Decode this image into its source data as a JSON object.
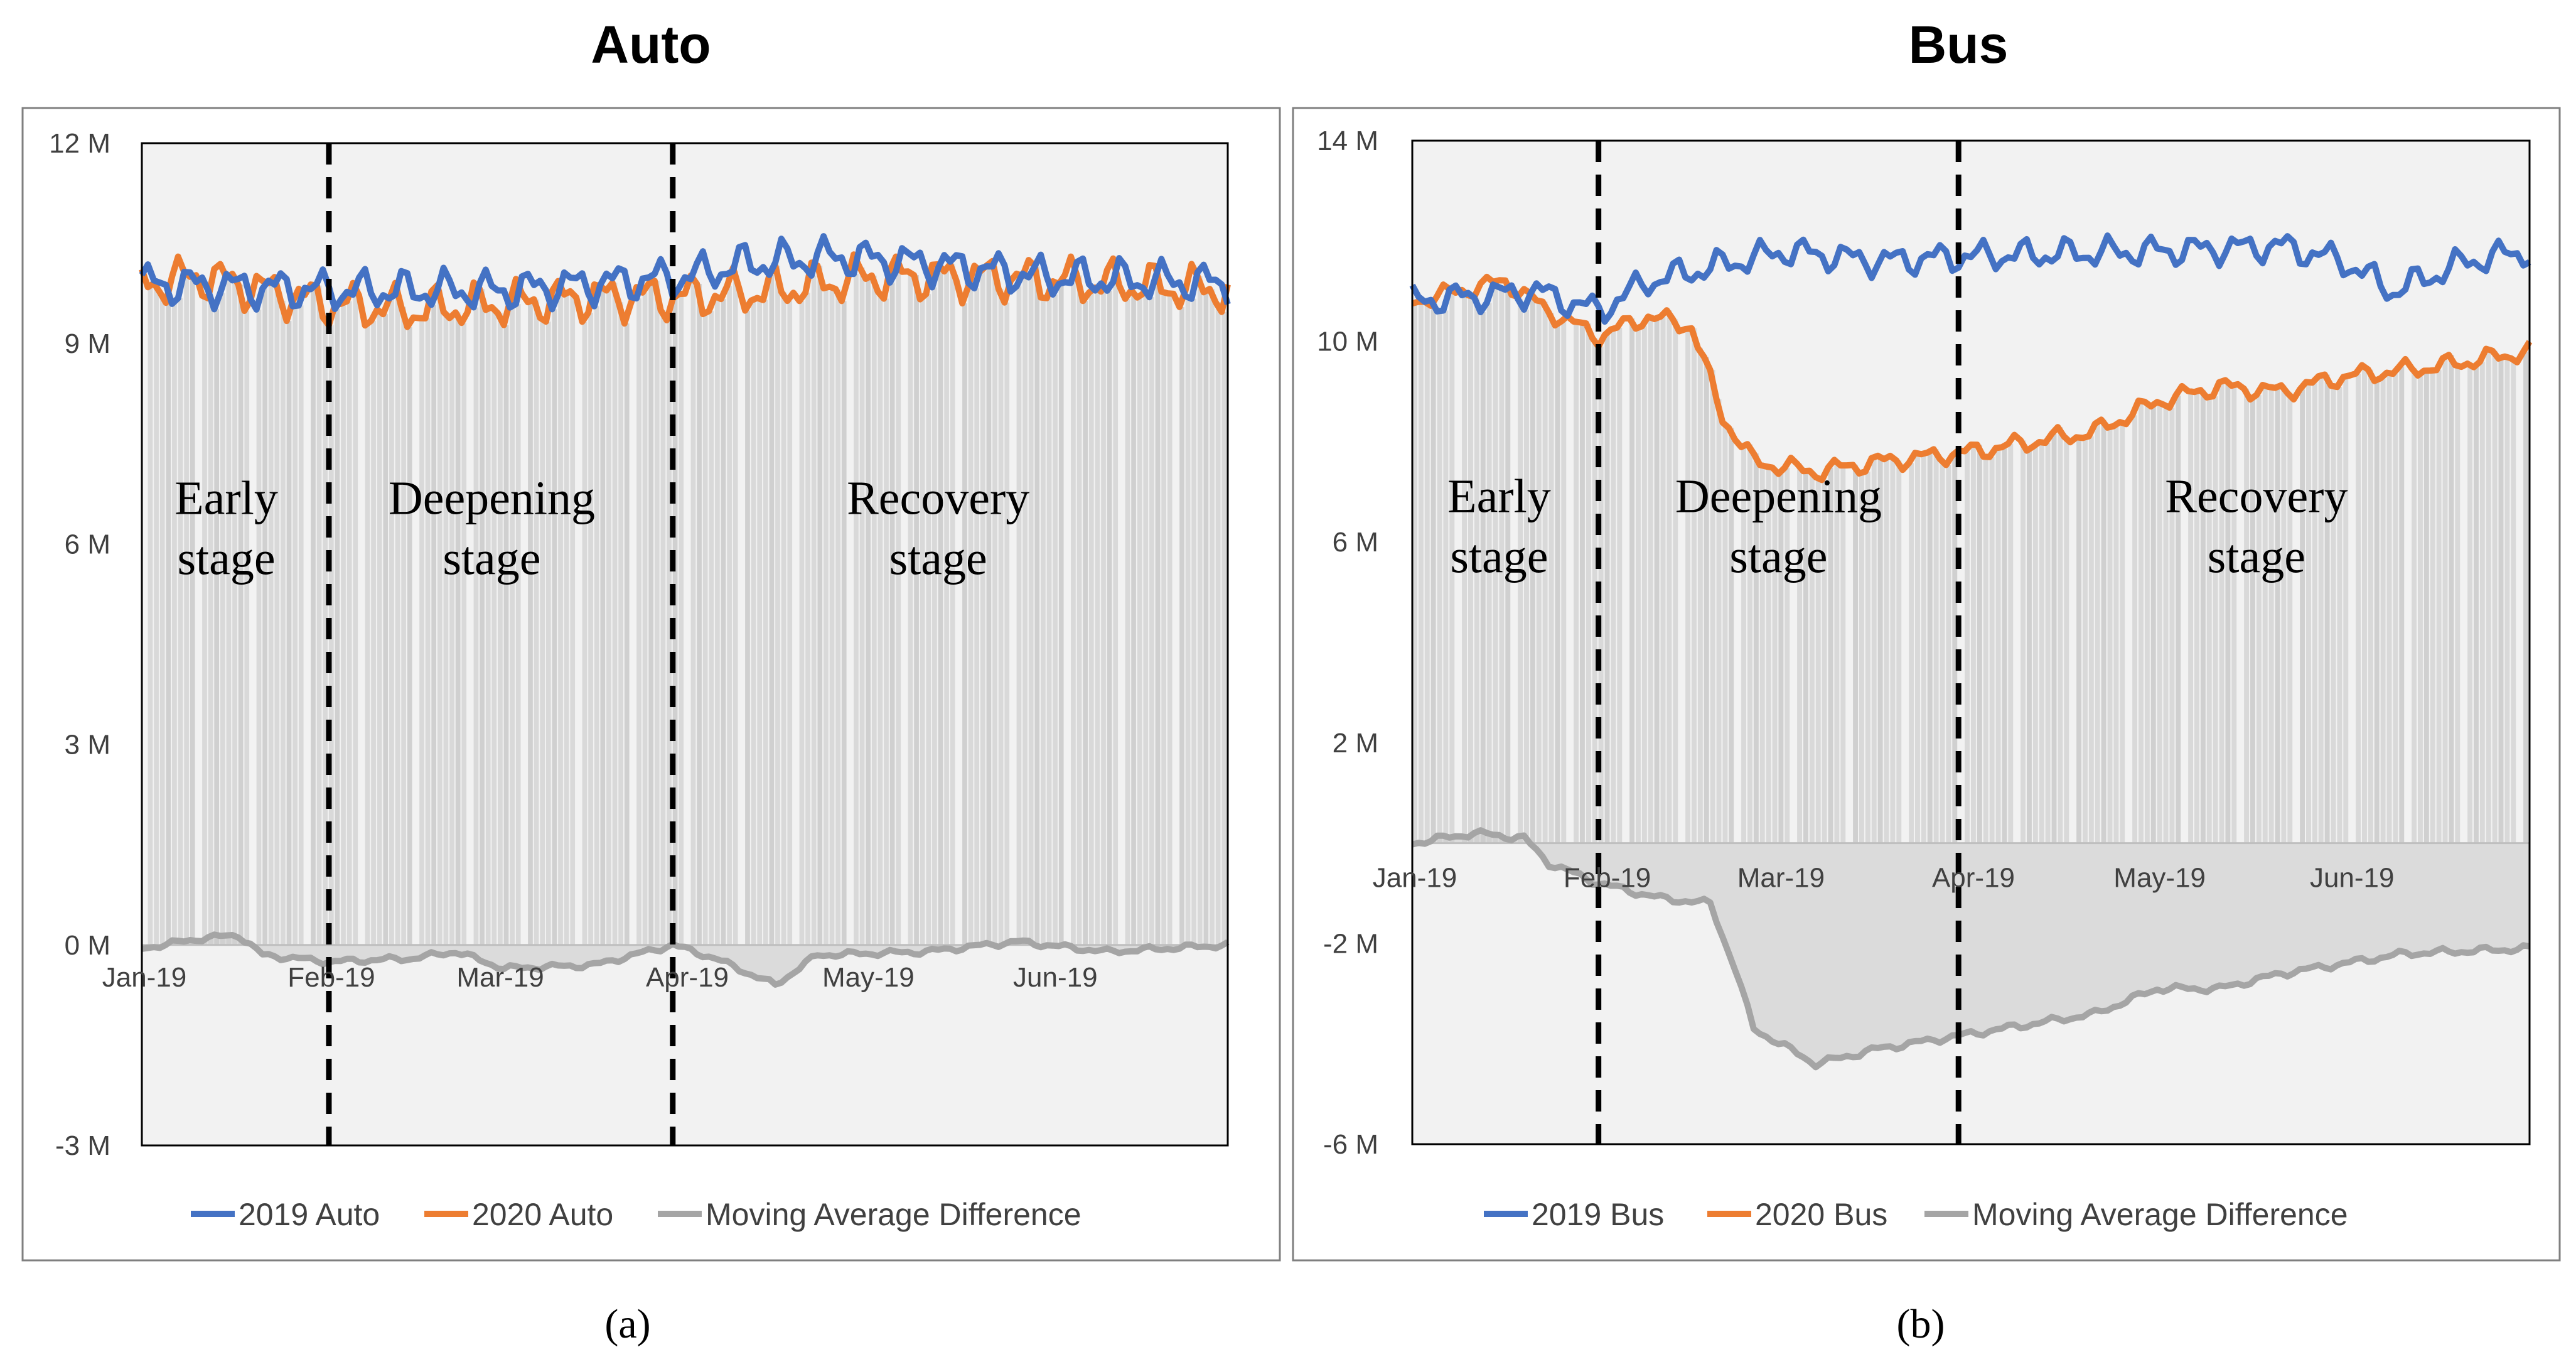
{
  "chart_data": [
    {
      "id": "a",
      "type": "line",
      "title": "Auto",
      "caption": "(a)",
      "y_tick_labels": [
        "12 M",
        "9 M",
        "6 M",
        "3 M",
        "0 M",
        "-3 M"
      ],
      "y_tick_values": [
        12,
        9,
        6,
        3,
        0,
        -3
      ],
      "ylim": [
        -3,
        12
      ],
      "x_tick_labels": [
        "Jan-19",
        "Feb-19",
        "Mar-19",
        "Apr-19",
        "May-19",
        "Jun-19"
      ],
      "x_tick_days": [
        0,
        31,
        59,
        90,
        120,
        151
      ],
      "x_days": 180,
      "stage_dividers_days": [
        31,
        88
      ],
      "stages": [
        {
          "line1": "Early",
          "line2": "stage",
          "center_day": 14
        },
        {
          "line1": "Deepening",
          "line2": "stage",
          "center_day": 58
        },
        {
          "line1": "Recovery",
          "line2": "stage",
          "center_day": 132
        }
      ],
      "legend": [
        "2019 Auto",
        "2020 Auto",
        "Moving Average Difference"
      ],
      "colors": {
        "y2019": "#4472C4",
        "y2020": "#ED7D31",
        "diff": "#A5A5A5"
      },
      "series_2019": {
        "base": 10.0,
        "points": [
          [
            0,
            9.9
          ],
          [
            31,
            9.8
          ],
          [
            60,
            9.8
          ],
          [
            90,
            10.0
          ],
          [
            100,
            10.2
          ],
          [
            115,
            10.3
          ],
          [
            130,
            10.2
          ],
          [
            150,
            10.0
          ],
          [
            180,
            9.9
          ]
        ],
        "amp": 0.35
      },
      "series_2020": {
        "base": 9.8,
        "points": [
          [
            0,
            9.9
          ],
          [
            10,
            10.0
          ],
          [
            31,
            9.6
          ],
          [
            45,
            9.5
          ],
          [
            60,
            9.6
          ],
          [
            75,
            9.7
          ],
          [
            90,
            9.7
          ],
          [
            105,
            9.8
          ],
          [
            120,
            10.0
          ],
          [
            140,
            10.0
          ],
          [
            160,
            9.9
          ],
          [
            180,
            9.8
          ]
        ],
        "amp": 0.4
      },
      "series_diff": {
        "points": [
          [
            0,
            -0.05
          ],
          [
            10,
            0.1
          ],
          [
            16,
            0.15
          ],
          [
            20,
            -0.15
          ],
          [
            31,
            -0.25
          ],
          [
            45,
            -0.2
          ],
          [
            52,
            -0.1
          ],
          [
            60,
            -0.35
          ],
          [
            75,
            -0.3
          ],
          [
            88,
            0.0
          ],
          [
            95,
            -0.2
          ],
          [
            105,
            -0.6
          ],
          [
            112,
            -0.15
          ],
          [
            130,
            -0.1
          ],
          [
            145,
            0.05
          ],
          [
            160,
            -0.1
          ],
          [
            180,
            0.0
          ]
        ],
        "amp": 0.05
      }
    },
    {
      "id": "b",
      "type": "line",
      "title": "Bus",
      "caption": "(b)",
      "y_tick_labels": [
        "14 M",
        "10 M",
        "6 M",
        "2 M",
        "-2 M",
        "-6 M"
      ],
      "y_tick_values": [
        14,
        10,
        6,
        2,
        -2,
        -6
      ],
      "ylim": [
        -6,
        14
      ],
      "x_tick_labels": [
        "Jan-19",
        "Feb-19",
        "Mar-19",
        "Apr-19",
        "May-19",
        "Jun-19"
      ],
      "x_tick_days": [
        0,
        31,
        59,
        90,
        120,
        151
      ],
      "x_days": 180,
      "x_axis_at": 0,
      "stage_dividers_days": [
        30,
        88
      ],
      "stages": [
        {
          "line1": "Early",
          "line2": "stage",
          "center_day": 14
        },
        {
          "line1": "Deepening",
          "line2": "stage",
          "center_day": 59
        },
        {
          "line1": "Recovery",
          "line2": "stage",
          "center_day": 136
        }
      ],
      "legend": [
        "2019 Bus",
        "2020 Bus",
        "Moving Average Difference"
      ],
      "colors": {
        "y2019": "#4472C4",
        "y2020": "#ED7D31",
        "diff": "#A5A5A5"
      },
      "series_2019": {
        "points": [
          [
            0,
            10.8
          ],
          [
            20,
            11.0
          ],
          [
            30,
            10.6
          ],
          [
            38,
            11.2
          ],
          [
            60,
            11.8
          ],
          [
            75,
            11.6
          ],
          [
            90,
            11.7
          ],
          [
            120,
            11.8
          ],
          [
            140,
            11.9
          ],
          [
            150,
            11.6
          ],
          [
            158,
            11.0
          ],
          [
            170,
            11.6
          ],
          [
            180,
            11.8
          ]
        ],
        "amp": 0.35
      },
      "series_2020": {
        "points": [
          [
            0,
            10.8
          ],
          [
            15,
            11.2
          ],
          [
            22,
            10.6
          ],
          [
            30,
            10.1
          ],
          [
            38,
            10.5
          ],
          [
            45,
            10.3
          ],
          [
            50,
            8.5
          ],
          [
            55,
            7.6
          ],
          [
            65,
            7.4
          ],
          [
            75,
            7.6
          ],
          [
            90,
            7.8
          ],
          [
            100,
            8.0
          ],
          [
            110,
            8.2
          ],
          [
            120,
            8.8
          ],
          [
            130,
            9.1
          ],
          [
            140,
            9.0
          ],
          [
            150,
            9.3
          ],
          [
            165,
            9.5
          ],
          [
            180,
            9.8
          ]
        ],
        "amp": 0.22
      },
      "series_diff": {
        "points": [
          [
            0,
            0.0
          ],
          [
            10,
            0.2
          ],
          [
            18,
            0.1
          ],
          [
            22,
            -0.4
          ],
          [
            30,
            -0.8
          ],
          [
            40,
            -1.1
          ],
          [
            48,
            -1.2
          ],
          [
            52,
            -2.5
          ],
          [
            55,
            -3.7
          ],
          [
            65,
            -4.4
          ],
          [
            75,
            -4.1
          ],
          [
            90,
            -3.8
          ],
          [
            100,
            -3.6
          ],
          [
            110,
            -3.4
          ],
          [
            120,
            -2.9
          ],
          [
            130,
            -2.9
          ],
          [
            140,
            -2.6
          ],
          [
            150,
            -2.4
          ],
          [
            160,
            -2.2
          ],
          [
            180,
            -2.1
          ]
        ],
        "amp": 0.08
      }
    }
  ]
}
